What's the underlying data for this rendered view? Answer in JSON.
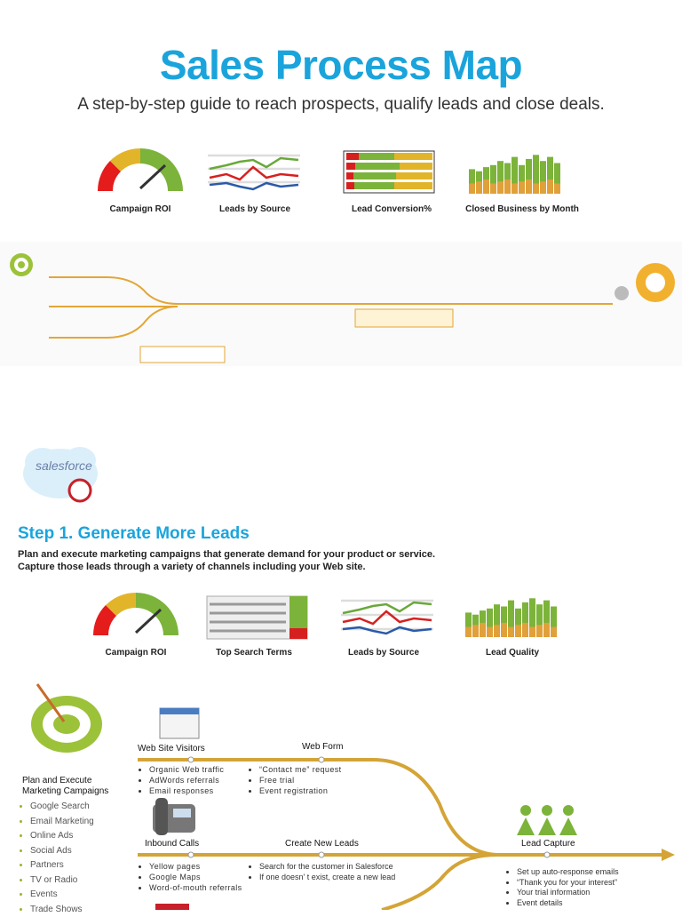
{
  "header": {
    "title": "Sales Process Map",
    "subtitle": "A step-by-step guide to reach prospects, qualify leads and close deals."
  },
  "overview_dashboard": [
    "Campaign ROI",
    "Leads by Source",
    "Lead Conversion%",
    "Closed Business by Month"
  ],
  "logo": {
    "brand": "salesforce"
  },
  "step1": {
    "title": "Step 1. Generate More Leads",
    "description": [
      "Plan and execute marketing campaigns that generate demand for your product or service.",
      "Capture those leads through a variety of channels including your Web site."
    ],
    "dashboard": [
      "Campaign ROI",
      "Top Search Terms",
      "Leads by Source",
      "Lead Quality"
    ]
  },
  "map": {
    "plan": {
      "title": [
        "Plan and Execute",
        "Marketing Campaigns"
      ],
      "channels": [
        "Google Search",
        "Email Marketing",
        "Online Ads",
        "Social Ads",
        "Partners",
        "TV or Radio",
        "Events",
        "Trade Shows"
      ]
    },
    "web_visitors": {
      "label": "Web Site Visitors",
      "items": [
        "Organic Web traffic",
        "AdWords referrals",
        "Email responses"
      ]
    },
    "web_form": {
      "label": "Web Form",
      "items": [
        "“Contact me” request",
        "Free trial",
        "Event registration"
      ]
    },
    "inbound_calls": {
      "label": "Inbound Calls",
      "items": [
        "Yellow pages",
        "Google Maps",
        "Word-of-mouth referrals"
      ]
    },
    "create_leads": {
      "label": "Create New Leads",
      "items": [
        "Search for the customer in Salesforce",
        "If one doesn' t exist, create a new lead"
      ]
    },
    "lead_capture": {
      "label": "Lead Capture",
      "items": [
        "Set up auto-response emails",
        "“Thank you for your interest”",
        "Your trial information",
        "Event details"
      ]
    }
  }
}
